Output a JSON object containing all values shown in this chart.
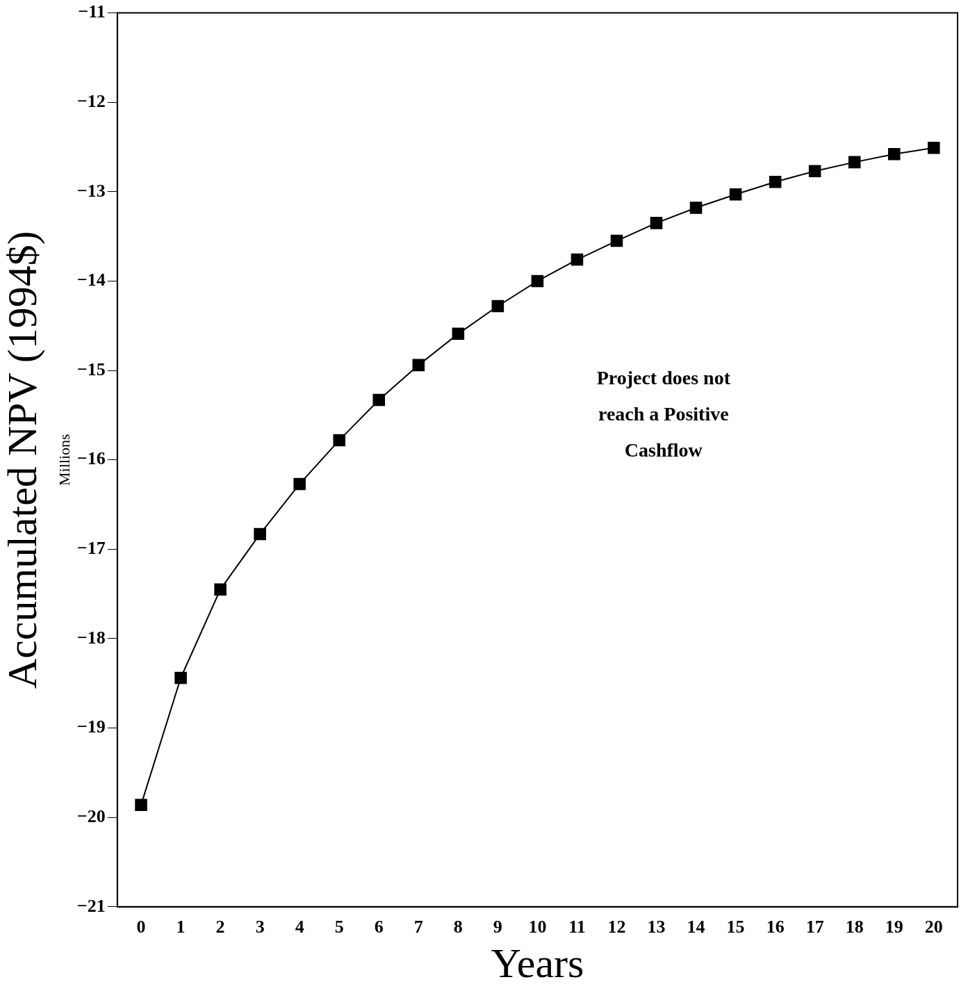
{
  "chart_data": {
    "type": "line",
    "xlabel": "Years",
    "ylabel": "Accumulated NPV (1994$)",
    "x": [
      0,
      1,
      2,
      3,
      4,
      5,
      6,
      7,
      8,
      9,
      10,
      11,
      12,
      13,
      14,
      15,
      16,
      17,
      18,
      19,
      20
    ],
    "xlim": [
      -0.6,
      20.6
    ],
    "xticks": [
      0,
      1,
      2,
      3,
      4,
      5,
      6,
      7,
      8,
      9,
      10,
      11,
      12,
      13,
      14,
      15,
      16,
      17,
      18,
      19,
      20
    ],
    "series": [
      {
        "color": "#000000",
        "values": [
          -19.86,
          -18.44,
          -17.45,
          -16.83,
          -16.27,
          -15.78,
          -15.33,
          -14.94,
          -14.59,
          -14.28,
          -14.0,
          -13.76,
          -13.55,
          -13.35,
          -13.18,
          -13.03,
          -12.89,
          -12.77,
          -12.67,
          -12.58,
          -12.51
        ]
      }
    ],
    "ylim": [
      -21,
      -11
    ],
    "yticks": [
      -21,
      -20,
      -19,
      -18,
      -17,
      -16,
      -15,
      -14,
      -13,
      -12,
      -11
    ],
    "marker": "square",
    "line_style": "solid",
    "grid": false,
    "legend": false,
    "annotations": [
      "Millions",
      "Project does not\nreach a Positive\nCashflow"
    ]
  }
}
